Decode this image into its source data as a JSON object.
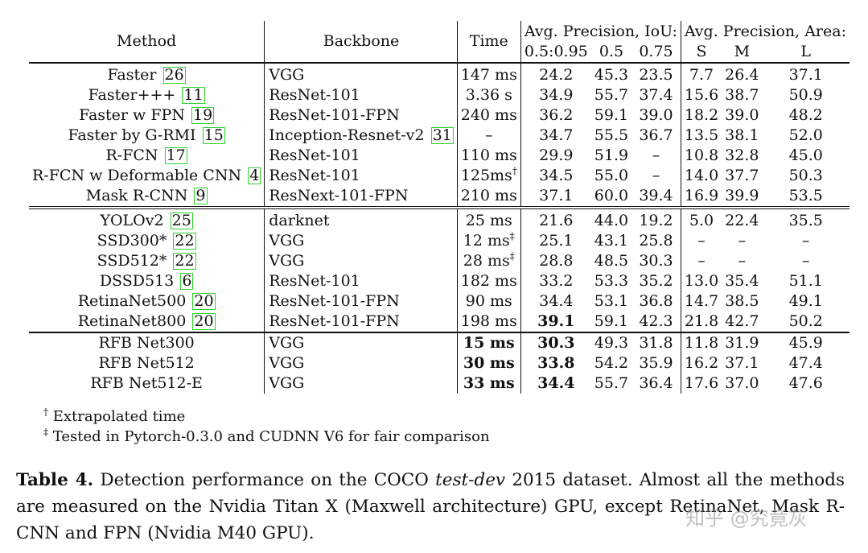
{
  "table": {
    "headers": {
      "method": "Method",
      "backbone": "Backbone",
      "time": "Time",
      "ap_iou_group": "Avg. Precision, IoU:",
      "ap_area_group": "Avg. Precision, Area:",
      "iou_050_095": "0.5:0.95",
      "iou_050": "0.5",
      "iou_075": "0.75",
      "area_s": "S",
      "area_m": "M",
      "area_l": "L"
    },
    "groups": [
      {
        "rows": [
          {
            "method": "Faster",
            "ref": "26",
            "backbone": "VGG",
            "backbone_ref": "",
            "time": "147 ms",
            "time_mark": "",
            "ap": "24.2",
            "ap50": "45.3",
            "ap75": "23.5",
            "s": "7.7",
            "m": "26.4",
            "l": "37.1",
            "bold_time": false,
            "bold_ap": false
          },
          {
            "method": "Faster+++",
            "ref": "11",
            "backbone": "ResNet-101",
            "backbone_ref": "",
            "time": "3.36 s",
            "time_mark": "",
            "ap": "34.9",
            "ap50": "55.7",
            "ap75": "37.4",
            "s": "15.6",
            "m": "38.7",
            "l": "50.9",
            "bold_time": false,
            "bold_ap": false
          },
          {
            "method": "Faster w FPN",
            "ref": "19",
            "backbone": "ResNet-101-FPN",
            "backbone_ref": "",
            "time": "240 ms",
            "time_mark": "",
            "ap": "36.2",
            "ap50": "59.1",
            "ap75": "39.0",
            "s": "18.2",
            "m": "39.0",
            "l": "48.2",
            "bold_time": false,
            "bold_ap": false
          },
          {
            "method": "Faster by G-RMI",
            "ref": "15",
            "backbone": "Inception-Resnet-v2",
            "backbone_ref": "31",
            "time": "–",
            "time_mark": "",
            "ap": "34.7",
            "ap50": "55.5",
            "ap75": "36.7",
            "s": "13.5",
            "m": "38.1",
            "l": "52.0",
            "bold_time": false,
            "bold_ap": false
          },
          {
            "method": "R-FCN",
            "ref": "17",
            "backbone": "ResNet-101",
            "backbone_ref": "",
            "time": "110 ms",
            "time_mark": "",
            "ap": "29.9",
            "ap50": "51.9",
            "ap75": "–",
            "s": "10.8",
            "m": "32.8",
            "l": "45.0",
            "bold_time": false,
            "bold_ap": false
          },
          {
            "method": "R-FCN w Deformable CNN",
            "ref": "4",
            "backbone": "ResNet-101",
            "backbone_ref": "",
            "time": "125ms",
            "time_mark": "†",
            "ap": "34.5",
            "ap50": "55.0",
            "ap75": "–",
            "s": "14.0",
            "m": "37.7",
            "l": "50.3",
            "bold_time": false,
            "bold_ap": false
          },
          {
            "method": "Mask R-CNN",
            "ref": "9",
            "backbone": "ResNext-101-FPN",
            "backbone_ref": "",
            "time": "210 ms",
            "time_mark": "",
            "ap": "37.1",
            "ap50": "60.0",
            "ap75": "39.4",
            "s": "16.9",
            "m": "39.9",
            "l": "53.5",
            "bold_time": false,
            "bold_ap": false
          }
        ]
      },
      {
        "rows": [
          {
            "method": "YOLOv2",
            "ref": "25",
            "backbone": "darknet",
            "backbone_ref": "",
            "time": "25 ms",
            "time_mark": "",
            "ap": "21.6",
            "ap50": "44.0",
            "ap75": "19.2",
            "s": "5.0",
            "m": "22.4",
            "l": "35.5",
            "bold_time": false,
            "bold_ap": false
          },
          {
            "method": "SSD300*",
            "ref": "22",
            "backbone": "VGG",
            "backbone_ref": "",
            "time": "12 ms",
            "time_mark": "‡",
            "ap": "25.1",
            "ap50": "43.1",
            "ap75": "25.8",
            "s": "–",
            "m": "–",
            "l": "–",
            "bold_time": false,
            "bold_ap": false
          },
          {
            "method": "SSD512*",
            "ref": "22",
            "backbone": "VGG",
            "backbone_ref": "",
            "time": "28 ms",
            "time_mark": "‡",
            "ap": "28.8",
            "ap50": "48.5",
            "ap75": "30.3",
            "s": "–",
            "m": "–",
            "l": "–",
            "bold_time": false,
            "bold_ap": false
          },
          {
            "method": "DSSD513",
            "ref": "6",
            "backbone": "ResNet-101",
            "backbone_ref": "",
            "time": "182 ms",
            "time_mark": "",
            "ap": "33.2",
            "ap50": "53.3",
            "ap75": "35.2",
            "s": "13.0",
            "m": "35.4",
            "l": "51.1",
            "bold_time": false,
            "bold_ap": false
          },
          {
            "method": "RetinaNet500",
            "ref": "20",
            "backbone": "ResNet-101-FPN",
            "backbone_ref": "",
            "time": "90 ms",
            "time_mark": "",
            "ap": "34.4",
            "ap50": "53.1",
            "ap75": "36.8",
            "s": "14.7",
            "m": "38.5",
            "l": "49.1",
            "bold_time": false,
            "bold_ap": false
          },
          {
            "method": "RetinaNet800",
            "ref": "20",
            "backbone": "ResNet-101-FPN",
            "backbone_ref": "",
            "time": "198 ms",
            "time_mark": "",
            "ap": "39.1",
            "ap50": "59.1",
            "ap75": "42.3",
            "s": "21.8",
            "m": "42.7",
            "l": "50.2",
            "bold_time": false,
            "bold_ap": true
          }
        ]
      },
      {
        "rows": [
          {
            "method": "RFB Net300",
            "ref": "",
            "backbone": "VGG",
            "backbone_ref": "",
            "time": "15 ms",
            "time_mark": "",
            "ap": "30.3",
            "ap50": "49.3",
            "ap75": "31.8",
            "s": "11.8",
            "m": "31.9",
            "l": "45.9",
            "bold_time": true,
            "bold_ap": true
          },
          {
            "method": "RFB Net512",
            "ref": "",
            "backbone": "VGG",
            "backbone_ref": "",
            "time": "30 ms",
            "time_mark": "",
            "ap": "33.8",
            "ap50": "54.2",
            "ap75": "35.9",
            "s": "16.2",
            "m": "37.1",
            "l": "47.4",
            "bold_time": true,
            "bold_ap": true
          },
          {
            "method": "RFB Net512-E",
            "ref": "",
            "backbone": "VGG",
            "backbone_ref": "",
            "time": "33 ms",
            "time_mark": "",
            "ap": "34.4",
            "ap50": "55.7",
            "ap75": "36.4",
            "s": "17.6",
            "m": "37.0",
            "l": "47.6",
            "bold_time": true,
            "bold_ap": true
          }
        ]
      }
    ]
  },
  "footnotes": [
    {
      "mark": "†",
      "text": "Extrapolated time"
    },
    {
      "mark": "‡",
      "text": "Tested in Pytorch-0.3.0 and CUDNN V6 for fair comparison"
    }
  ],
  "caption": {
    "label": "Table 4.",
    "text_before": "Detection performance on the COCO",
    "italic": "test-dev",
    "text_after": "2015 dataset. Almost all the methods are measured on the Nvidia Titan X (Maxwell architecture) GPU, except RetinaNet, Mask R-CNN and FPN (Nvidia M40 GPU)."
  },
  "watermark": "知乎 @究竟灰"
}
